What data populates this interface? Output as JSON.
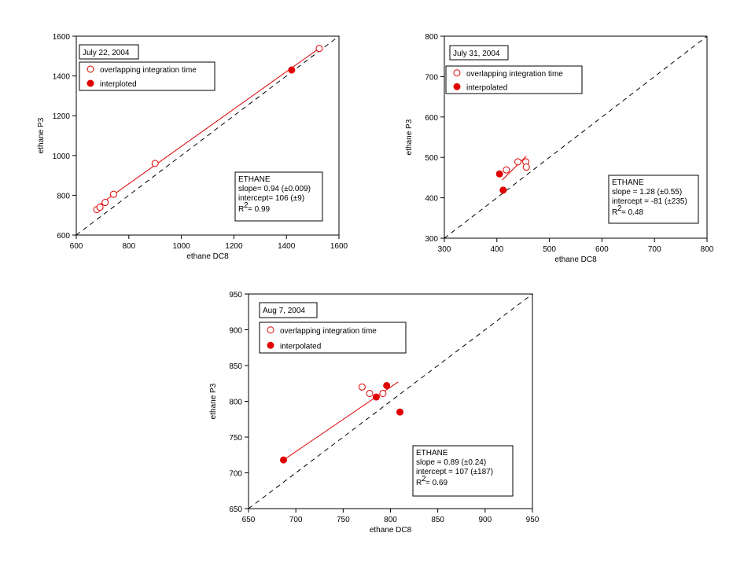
{
  "chart_data": [
    {
      "type": "scatter",
      "date_label": "July 22, 2004",
      "xlabel": "ethane DC8",
      "ylabel": "ethane P3",
      "xlim": [
        600,
        1600
      ],
      "ylim": [
        600,
        1600
      ],
      "xticks": [
        600,
        800,
        1000,
        1200,
        1400,
        1600
      ],
      "yticks": [
        600,
        800,
        1000,
        1200,
        1400,
        1600
      ],
      "legend": [
        "overlapping integration time",
        "interploted"
      ],
      "stats": [
        "ETHANE",
        "slope= 0.94 (±0.009)",
        "intercept= 106 (±9)",
        "R",
        "2",
        "= 0.99"
      ],
      "series": [
        {
          "name": "overlapping integration time",
          "marker": "open-circle",
          "x": [
            678,
            690,
            710,
            742,
            900,
            1525
          ],
          "y": [
            728,
            740,
            764,
            805,
            960,
            1538
          ]
        },
        {
          "name": "interploted",
          "marker": "filled-circle",
          "x": [
            1420
          ],
          "y": [
            1430
          ]
        }
      ],
      "fit_line": {
        "x": [
          678,
          1525
        ],
        "y": [
          743,
          1539
        ]
      },
      "one_to_one": true,
      "color": "#e00000"
    },
    {
      "type": "scatter",
      "date_label": "July 31, 2004",
      "xlabel": "ethane DC8",
      "ylabel": "ethane P3",
      "xlim": [
        300,
        800
      ],
      "ylim": [
        300,
        800
      ],
      "xticks": [
        300,
        400,
        500,
        600,
        700,
        800
      ],
      "yticks": [
        300,
        400,
        500,
        600,
        700,
        800
      ],
      "legend": [
        "overlapping integration time",
        "interpolated"
      ],
      "stats": [
        "ETHANE",
        "slope = 1.28 (±0.55)",
        "intercept = -81 (±235)",
        "R",
        "2",
        "= 0.48"
      ],
      "series": [
        {
          "name": "overlapping integration time",
          "marker": "open-circle",
          "x": [
            418,
            440,
            455,
            456
          ],
          "y": [
            469,
            489,
            489,
            476
          ]
        },
        {
          "name": "interpolated",
          "marker": "filled-circle",
          "x": [
            405,
            412
          ],
          "y": [
            459,
            419
          ]
        }
      ],
      "fit_line": {
        "x": [
          410,
          456
        ],
        "y": [
          444,
          503
        ]
      },
      "one_to_one": true,
      "color": "#e00000"
    },
    {
      "type": "scatter",
      "date_label": "Aug 7, 2004",
      "xlabel": "ethane DC8",
      "ylabel": "ethane P3",
      "xlim": [
        650,
        950
      ],
      "ylim": [
        650,
        950
      ],
      "xticks": [
        650,
        700,
        750,
        800,
        850,
        900,
        950
      ],
      "yticks": [
        650,
        700,
        750,
        800,
        850,
        900,
        950
      ],
      "legend": [
        "overlapping integration time",
        "interpolated"
      ],
      "stats": [
        "ETHANE",
        "slope = 0.89 (±0.24)",
        "intercept = 107 (±187)",
        "R",
        "2",
        "= 0.69"
      ],
      "series": [
        {
          "name": "overlapping integration time",
          "marker": "open-circle",
          "x": [
            770,
            778,
            792
          ],
          "y": [
            820,
            811,
            811
          ]
        },
        {
          "name": "interpolated",
          "marker": "filled-circle",
          "x": [
            687,
            785,
            796,
            810
          ],
          "y": [
            718,
            806,
            822,
            785
          ]
        }
      ],
      "fit_line": {
        "x": [
          687,
          808
        ],
        "y": [
          718,
          827
        ]
      },
      "one_to_one": true,
      "color": "#e00000"
    }
  ]
}
